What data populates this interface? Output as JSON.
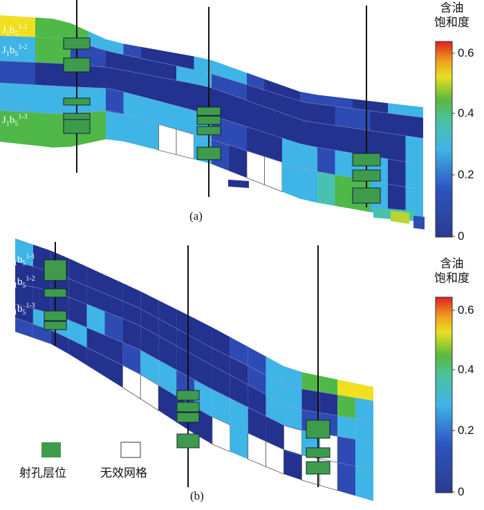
{
  "colorbar": {
    "title_line1": "含油",
    "title_line2": "饱和度",
    "ticks": [
      "0.6",
      "0.4",
      "0.2",
      "0"
    ],
    "tick_values": [
      0.6,
      0.4,
      0.2,
      0
    ],
    "range": [
      0,
      0.65
    ]
  },
  "panels": {
    "a": {
      "caption": "(a)",
      "layers": [
        {
          "base": "J",
          "sub1": "1",
          "mid": "b",
          "sub2": "5",
          "sup": "1-1"
        },
        {
          "base": "J",
          "sub1": "1",
          "mid": "b",
          "sub2": "5",
          "sup": "1-2"
        },
        {
          "base": "J",
          "sub1": "1",
          "mid": "b",
          "sub2": "5",
          "sup": "1-3"
        }
      ]
    },
    "b": {
      "caption": "(b)",
      "layers": [
        {
          "base": "J",
          "sub1": "1",
          "mid": "b",
          "sub2": "5",
          "sup": "1-1"
        },
        {
          "base": "J",
          "sub1": "1",
          "mid": "b",
          "sub2": "5",
          "sup": "1-2"
        },
        {
          "base": "J",
          "sub1": "1",
          "mid": "b",
          "sub2": "5",
          "sup": "1-3"
        }
      ]
    }
  },
  "legend": {
    "perforation_label": "射孔层位",
    "invalid_label": "无效网格",
    "perforation_color": "#3f9b4c"
  },
  "colors": {
    "deep_blue": "#23318f",
    "mid_blue": "#2e4bb4",
    "cyan": "#3fb4e6",
    "teal": "#48c2b0",
    "green": "#4fb848",
    "yellow": "#f0e020"
  }
}
